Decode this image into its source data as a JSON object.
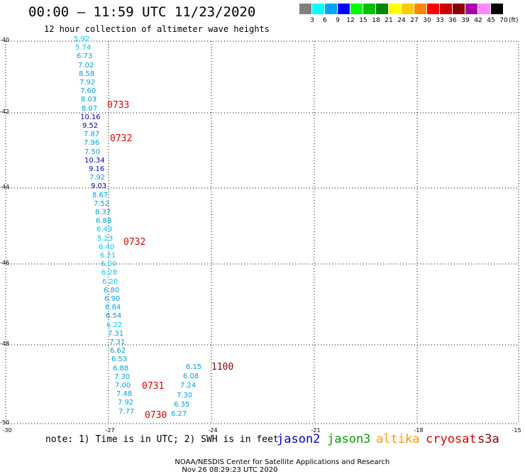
{
  "header": {
    "title": "00:00 – 11:59 UTC 11/23/2020",
    "subtitle": "12 hour collection of altimeter wave heights"
  },
  "color_scale": {
    "labels": [
      "3",
      "6",
      "9",
      "12",
      "15",
      "18",
      "21",
      "24",
      "27",
      "30",
      "33",
      "36",
      "39",
      "42",
      "45",
      "70"
    ],
    "unit": "(ft)",
    "colors": [
      "#808080",
      "#00ffff",
      "#00a5ff",
      "#0000ff",
      "#00ff00",
      "#00c000",
      "#008800",
      "#ffff00",
      "#ffcc00",
      "#ff8800",
      "#ff0000",
      "#cc0000",
      "#880000",
      "#aa00aa",
      "#ff88ff",
      "#000000"
    ]
  },
  "axes": {
    "y_labels": [
      "-40",
      "-42",
      "-44",
      "-46",
      "-48",
      "-50"
    ],
    "x_labels": [
      "-30",
      "-27",
      "-24",
      "-21",
      "-18",
      "-15"
    ]
  },
  "observations": {
    "column1": [
      "5.92",
      "5.74",
      "6.73",
      "7.02",
      "8.58",
      "7.92",
      "7.60",
      "8.03",
      "8.07",
      "10.16",
      "9.52",
      "7.87",
      "7.96",
      "7.50",
      "10.34",
      "9.16",
      "7.92",
      "9.03",
      "8.67",
      "7.52",
      "8.37",
      "6.88",
      "6.49",
      "5.23",
      "6.40",
      "6.21",
      "6.00",
      "6.28",
      "6.20",
      "6.80",
      "6.90",
      "6.84",
      "6.54",
      "6.22",
      "7.31",
      "7.31",
      "6.62",
      "6.53",
      "6.88",
      "7.30",
      "7.00",
      "7.48",
      "7.92",
      "7.77"
    ],
    "column2": [
      "6.15",
      "6.08",
      "7.24",
      "7.30",
      "6.35",
      "6.27"
    ]
  },
  "times": {
    "t1": "0733",
    "t2": "0732",
    "t3": "0732",
    "t4": "0731",
    "t5": "0730",
    "t6": "1100"
  },
  "note": "note: 1) Time is in UTC; 2) SWH is in feet",
  "legend": {
    "jason2": "jason2",
    "jason3": "jason3",
    "altika": "altika",
    "cryosat": "cryosat",
    "s3a": "s3a"
  },
  "footer": {
    "org": "NOAA/NESDIS Center for Satellite Applications and Research",
    "timestamp": "Nov 26 08:29:23 UTC 2020"
  }
}
